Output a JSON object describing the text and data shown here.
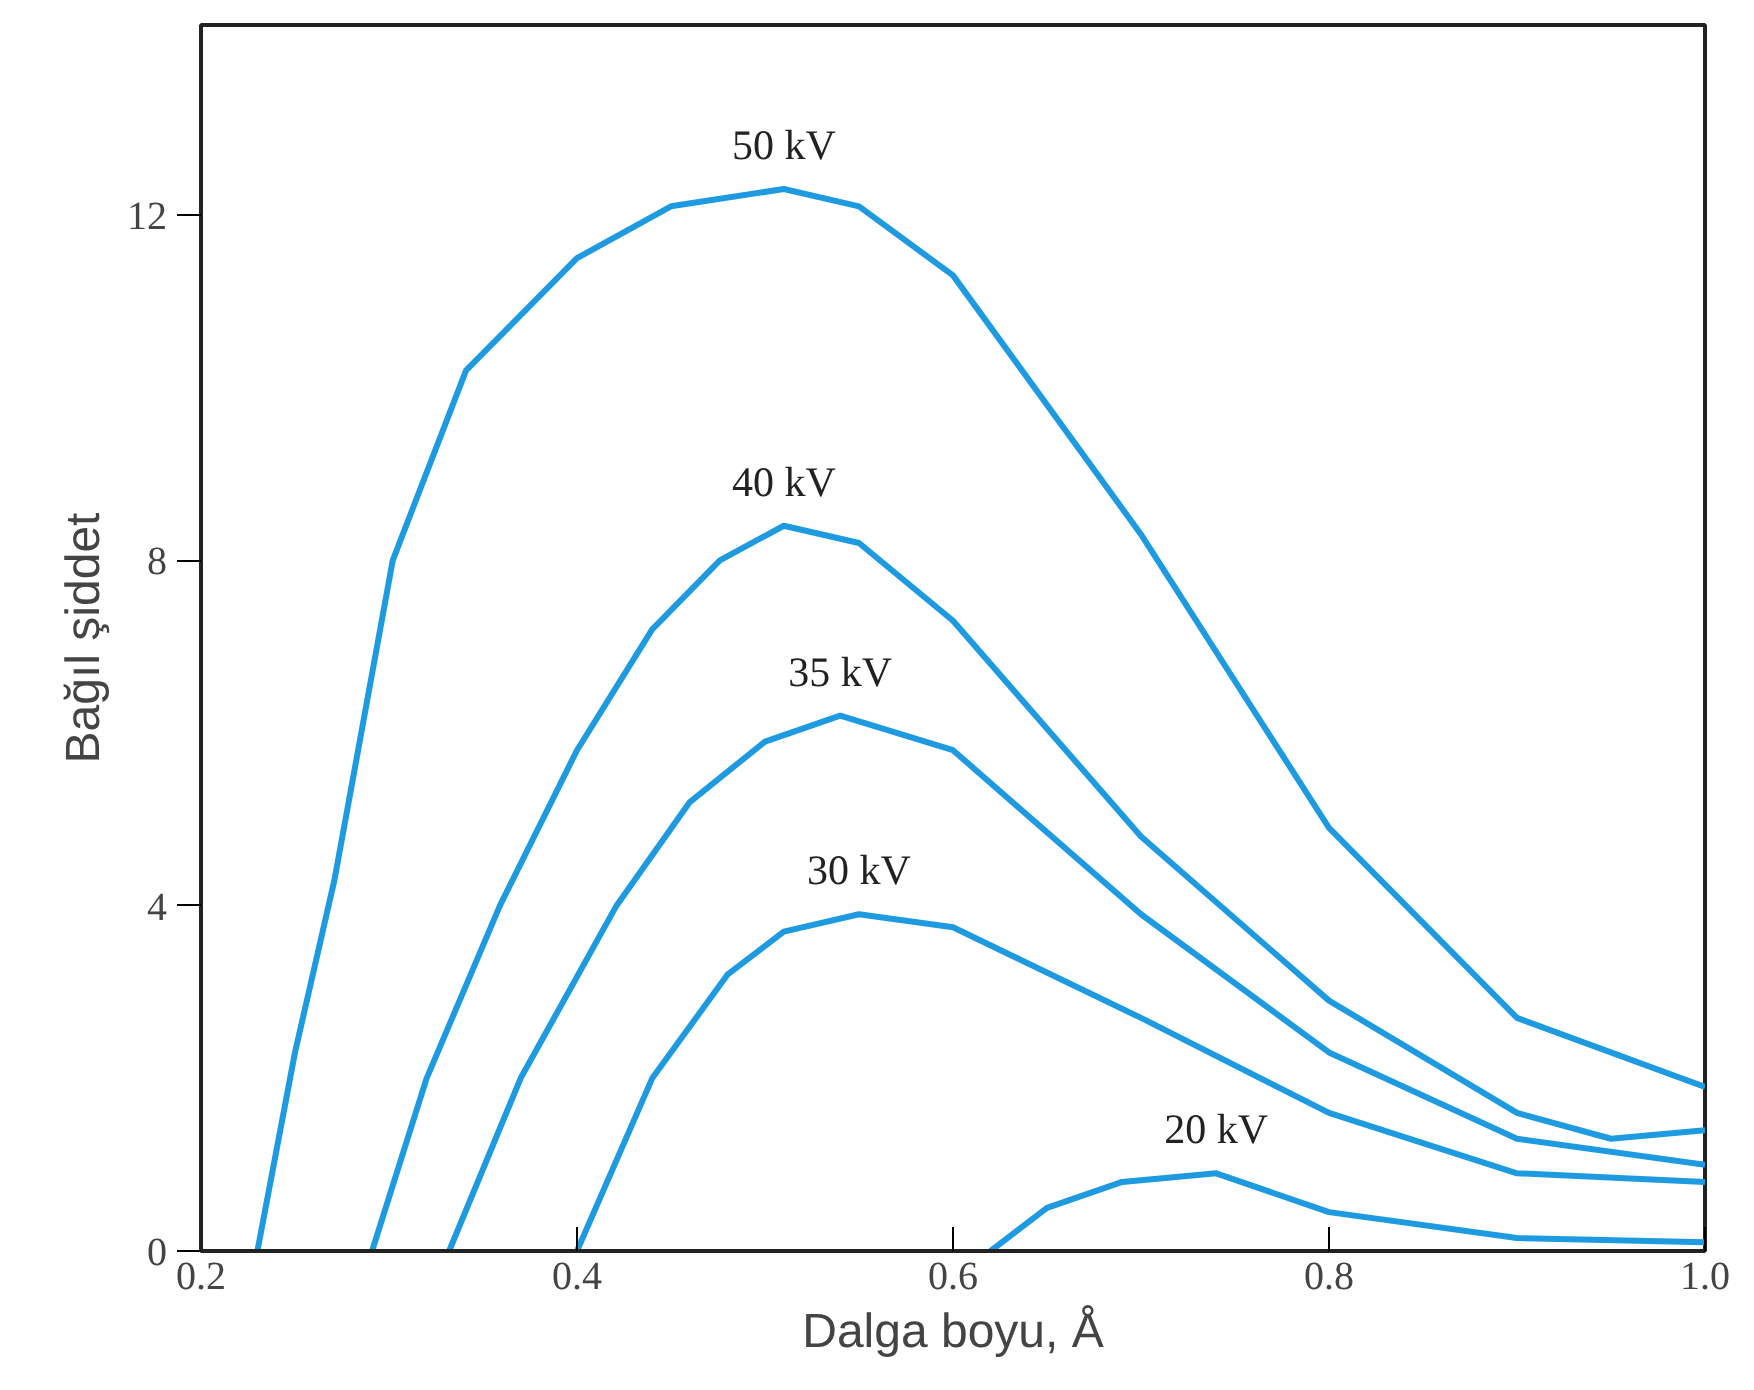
{
  "chart_data": {
    "type": "line",
    "xlabel": "Dalga boyu, Å",
    "ylabel": "Bağıl şiddet",
    "xlim": [
      0.2,
      1.0
    ],
    "ylim": [
      0,
      14.2
    ],
    "xticks": [
      0.2,
      0.4,
      0.6,
      0.8,
      {
        "value": 1.0,
        "label": "1.0"
      }
    ],
    "yticks": [
      0,
      4,
      8,
      12
    ],
    "series": [
      {
        "name": "50 kV",
        "color": "#1e9ae0",
        "x": [
          0.23,
          0.25,
          0.271,
          0.302,
          0.341,
          0.4,
          0.45,
          0.51,
          0.55,
          0.6,
          0.7,
          0.8,
          0.9,
          1.0
        ],
        "values": [
          0,
          2.3,
          4.3,
          8,
          10.2,
          11.5,
          12.1,
          12.3,
          12.1,
          11.3,
          8.3,
          4.9,
          2.7,
          1.9
        ]
      },
      {
        "name": "40 kV",
        "color": "#1e9ae0",
        "x": [
          0.291,
          0.32,
          0.359,
          0.4,
          0.44,
          0.476,
          0.51,
          0.55,
          0.6,
          0.7,
          0.8,
          0.9,
          0.95,
          1.0
        ],
        "values": [
          0,
          2,
          4,
          5.8,
          7.2,
          8,
          8.4,
          8.2,
          7.3,
          4.8,
          2.9,
          1.6,
          1.3,
          1.4
        ]
      },
      {
        "name": "35 kV",
        "color": "#1e9ae0",
        "x": [
          0.332,
          0.37,
          0.421,
          0.46,
          0.5,
          0.54,
          0.6,
          0.7,
          0.8,
          0.9,
          1.0
        ],
        "values": [
          0,
          2,
          4,
          5.2,
          5.9,
          6.2,
          5.8,
          3.9,
          2.3,
          1.3,
          1.0
        ]
      },
      {
        "name": "30 kV",
        "color": "#1e9ae0",
        "x": [
          0.4,
          0.44,
          0.48,
          0.51,
          0.55,
          0.6,
          0.7,
          0.8,
          0.9,
          1.0
        ],
        "values": [
          0,
          2,
          3.2,
          3.7,
          3.9,
          3.75,
          2.7,
          1.6,
          0.9,
          0.8
        ]
      },
      {
        "name": "20 kV",
        "color": "#1e9ae0",
        "x": [
          0.62,
          0.65,
          0.69,
          0.74,
          0.8,
          0.9,
          1.0
        ],
        "values": [
          0,
          0.5,
          0.8,
          0.9,
          0.45,
          0.15,
          0.1
        ]
      }
    ]
  }
}
